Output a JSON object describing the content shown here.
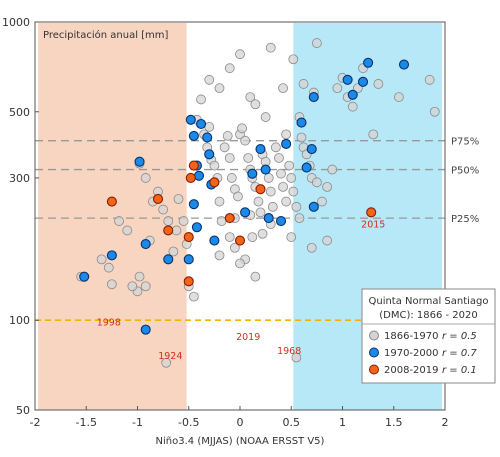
{
  "chart_data": {
    "type": "scatter",
    "title": "Precipitación anual [mm]",
    "xlabel": "Niño3.4 (MJJAS) (NOAA ERSST V5)",
    "ylabel": "",
    "y_scale": "log",
    "xlim": [
      -2,
      2
    ],
    "ylim": [
      50,
      1000
    ],
    "x_ticks": [
      -2,
      -1.5,
      -1,
      -0.5,
      0,
      0.5,
      1,
      1.5,
      2
    ],
    "x_tick_labels": [
      "-2",
      "-1.5",
      "-1",
      "-0.5",
      "0",
      "0.5",
      "1",
      "1.5",
      "2"
    ],
    "y_ticks": [
      50,
      100,
      300,
      500,
      1000
    ],
    "y_tick_labels": [
      "50",
      "100",
      "300",
      "500",
      "1000"
    ],
    "grid": false,
    "shaded_regions": [
      {
        "x": [
          -1.97,
          -0.52
        ],
        "color": "#f8d5c1"
      },
      {
        "x": [
          0.52,
          1.97
        ],
        "color": "#b7e8f7"
      }
    ],
    "percentile_lines": [
      {
        "label": "P75%",
        "y": 400
      },
      {
        "label": "P50%",
        "y": 320
      },
      {
        "label": "P25%",
        "y": 220
      }
    ],
    "reference_line": {
      "y": 100,
      "color": "#f2b400"
    },
    "legend": {
      "title_line1": "Quinta Normal  Santiago",
      "title_line2": "(DMC): 1866 - 2020",
      "position": "lower-right",
      "entries": [
        {
          "label": "1866-1970",
          "stat": "r = 0.5"
        },
        {
          "label": "1970-2000",
          "stat": "r = 0.7"
        },
        {
          "label": "2008-2019",
          "stat": "r = 0.1"
        }
      ]
    },
    "series": [
      {
        "name": "1866-1970",
        "fill": "#d4d4d4",
        "stroke": "#8a8a8a",
        "points": [
          [
            -1.55,
            140
          ],
          [
            -1.35,
            160
          ],
          [
            -1.28,
            150
          ],
          [
            -1.18,
            215
          ],
          [
            -1.1,
            200
          ],
          [
            -0.98,
            335
          ],
          [
            -0.92,
            300
          ],
          [
            -0.88,
            185
          ],
          [
            -0.85,
            250
          ],
          [
            -0.8,
            270
          ],
          [
            -0.75,
            235
          ],
          [
            -0.7,
            215
          ],
          [
            -0.65,
            170
          ],
          [
            -0.62,
            200
          ],
          [
            -0.6,
            255
          ],
          [
            -0.98,
            140
          ],
          [
            -0.92,
            130
          ],
          [
            -1.0,
            125
          ],
          [
            -0.55,
            215
          ],
          [
            -0.52,
            180
          ],
          [
            -1.25,
            132
          ],
          [
            -1.05,
            130
          ],
          [
            -0.72,
            72
          ],
          [
            -0.5,
            130
          ],
          [
            -0.45,
            120
          ],
          [
            -0.42,
            470
          ],
          [
            -0.38,
            550
          ],
          [
            -0.35,
            420
          ],
          [
            -0.32,
            380
          ],
          [
            -0.3,
            445
          ],
          [
            -0.28,
            345
          ],
          [
            -0.25,
            330
          ],
          [
            -0.22,
            300
          ],
          [
            -0.2,
            250
          ],
          [
            -0.18,
            215
          ],
          [
            -0.15,
            380
          ],
          [
            -0.12,
            415
          ],
          [
            -0.1,
            350
          ],
          [
            -0.08,
            300
          ],
          [
            -0.05,
            275
          ],
          [
            -0.02,
            260
          ],
          [
            0.0,
            420
          ],
          [
            0.02,
            440
          ],
          [
            0.05,
            400
          ],
          [
            0.08,
            350
          ],
          [
            0.1,
            320
          ],
          [
            0.12,
            300
          ],
          [
            0.15,
            280
          ],
          [
            0.18,
            250
          ],
          [
            0.2,
            230
          ],
          [
            0.22,
            360
          ],
          [
            0.25,
            340
          ],
          [
            0.28,
            300
          ],
          [
            0.3,
            270
          ],
          [
            0.32,
            240
          ],
          [
            0.35,
            380
          ],
          [
            0.38,
            350
          ],
          [
            0.4,
            310
          ],
          [
            0.42,
            280
          ],
          [
            0.45,
            250
          ],
          [
            0.48,
            330
          ],
          [
            0.5,
            300
          ],
          [
            0.52,
            270
          ],
          [
            0.55,
            240
          ],
          [
            0.58,
            220
          ],
          [
            0.6,
            410
          ],
          [
            0.62,
            380
          ],
          [
            0.65,
            360
          ],
          [
            0.68,
            330
          ],
          [
            0.7,
            300
          ],
          [
            -0.3,
            640
          ],
          [
            -0.2,
            600
          ],
          [
            -0.1,
            700
          ],
          [
            0.0,
            780
          ],
          [
            0.1,
            560
          ],
          [
            0.15,
            530
          ],
          [
            0.25,
            480
          ],
          [
            0.3,
            820
          ],
          [
            0.42,
            600
          ],
          [
            0.52,
            750
          ],
          [
            0.62,
            620
          ],
          [
            0.72,
            580
          ],
          [
            0.75,
            290
          ],
          [
            0.8,
            250
          ],
          [
            0.85,
            280
          ],
          [
            0.9,
            320
          ],
          [
            0.95,
            600
          ],
          [
            1.0,
            650
          ],
          [
            1.05,
            560
          ],
          [
            1.1,
            520
          ],
          [
            1.15,
            600
          ],
          [
            1.2,
            700
          ],
          [
            1.3,
            420
          ],
          [
            1.35,
            620
          ],
          [
            1.55,
            560
          ],
          [
            1.85,
            640
          ],
          [
            1.9,
            500
          ],
          [
            0.45,
            420
          ],
          [
            0.05,
            160
          ],
          [
            -0.05,
            175
          ],
          [
            0.0,
            155
          ],
          [
            0.12,
            190
          ],
          [
            -0.1,
            190
          ],
          [
            0.3,
            210
          ],
          [
            0.22,
            195
          ],
          [
            0.5,
            190
          ],
          [
            0.7,
            175
          ],
          [
            0.85,
            185
          ],
          [
            -0.05,
            220
          ],
          [
            0.1,
            225
          ],
          [
            0.55,
            75
          ],
          [
            -0.2,
            165
          ],
          [
            0.15,
            140
          ],
          [
            0.75,
            850
          ],
          [
            0.58,
            480
          ]
        ]
      },
      {
        "name": "1970-2000",
        "fill": "#1a8ae8",
        "stroke": "#0b2f6b",
        "points": [
          [
            -1.52,
            140
          ],
          [
            -1.25,
            165
          ],
          [
            -0.98,
            340
          ],
          [
            -0.92,
            180
          ],
          [
            -0.92,
            93
          ],
          [
            -0.7,
            160
          ],
          [
            -0.48,
            470
          ],
          [
            -0.45,
            415
          ],
          [
            -0.42,
            330
          ],
          [
            -0.4,
            305
          ],
          [
            -0.38,
            455
          ],
          [
            -0.32,
            410
          ],
          [
            -0.3,
            360
          ],
          [
            -0.28,
            285
          ],
          [
            -0.45,
            245
          ],
          [
            -0.42,
            205
          ],
          [
            -0.5,
            160
          ],
          [
            -0.25,
            185
          ],
          [
            0.05,
            230
          ],
          [
            0.12,
            310
          ],
          [
            0.2,
            375
          ],
          [
            0.25,
            320
          ],
          [
            0.28,
            220
          ],
          [
            0.4,
            215
          ],
          [
            0.45,
            390
          ],
          [
            0.6,
            460
          ],
          [
            0.65,
            325
          ],
          [
            0.7,
            375
          ],
          [
            0.72,
            240
          ],
          [
            1.05,
            640
          ],
          [
            1.2,
            630
          ],
          [
            1.25,
            730
          ],
          [
            1.6,
            720
          ],
          [
            1.1,
            570
          ],
          [
            0.72,
            560
          ]
        ]
      },
      {
        "name": "2008-2019",
        "fill": "#f26518",
        "stroke": "#8a1b00",
        "points": [
          [
            -1.25,
            250
          ],
          [
            -0.8,
            255
          ],
          [
            -0.7,
            200
          ],
          [
            -0.45,
            330
          ],
          [
            -0.48,
            300
          ],
          [
            -0.5,
            190
          ],
          [
            -0.5,
            135
          ],
          [
            -0.25,
            290
          ],
          [
            -0.1,
            220
          ],
          [
            0.0,
            185
          ],
          [
            0.2,
            275
          ],
          [
            1.28,
            230
          ]
        ]
      }
    ],
    "annotations": [
      {
        "text": "2015",
        "x": 1.3,
        "y": 205
      },
      {
        "text": "1998",
        "x": -1.28,
        "y": 96
      },
      {
        "text": "2019",
        "x": 0.08,
        "y": 86
      },
      {
        "text": "1924",
        "x": -0.68,
        "y": 74
      },
      {
        "text": "1968",
        "x": 0.48,
        "y": 77
      }
    ]
  }
}
